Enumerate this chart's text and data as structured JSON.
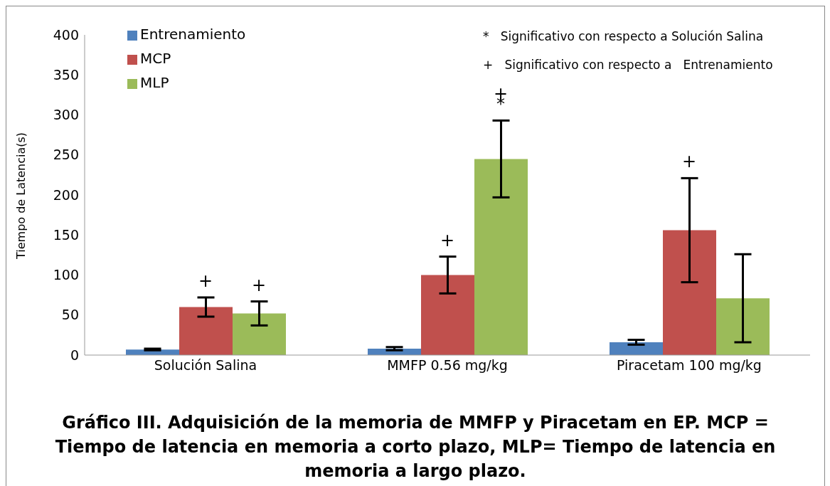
{
  "chart_data": {
    "type": "bar",
    "title": "Gráfico III. Adquisición de la memoria de MMFP y Piracetam en EP. MCP = Tiempo de latencia en memoria a corto plazo, MLP= Tiempo de latencia en memoria a largo plazo.",
    "ylabel": "Tiempo de Latencia(s)",
    "categories": [
      "Solución Salina",
      "MMFP 0.56 mg/kg",
      "Piracetam 100 mg/kg"
    ],
    "series": [
      {
        "name": "Entrenamiento",
        "color": "#4f81bd",
        "values": [
          7,
          8,
          16
        ],
        "errors": [
          1,
          2,
          3
        ]
      },
      {
        "name": "MCP",
        "color": "#c0504d",
        "values": [
          60,
          100,
          156
        ],
        "errors": [
          12,
          23,
          65
        ]
      },
      {
        "name": "MLP",
        "color": "#9bbb59",
        "values": [
          52,
          245,
          71
        ],
        "errors": [
          15,
          48,
          55
        ]
      }
    ],
    "ylim": [
      0,
      400
    ],
    "yticks": [
      0,
      50,
      100,
      150,
      200,
      250,
      300,
      350,
      400
    ],
    "grid": false,
    "legend": "top left",
    "annotations": [
      "*   Significativo con respecto a Solución Salina",
      "+   Significativo con respecto a   Entrenamiento",
      "+",
      "+",
      "+",
      "*",
      "+",
      "+"
    ]
  }
}
